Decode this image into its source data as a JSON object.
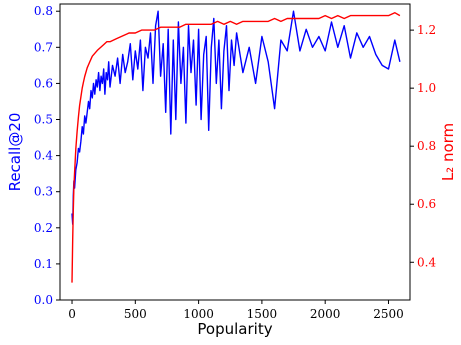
{
  "chart_data": {
    "type": "line",
    "xlabel": "Popularity",
    "ylabel_left": "Recall@20",
    "ylabel_right": "L₂ norm",
    "xlim": [
      -95,
      2670
    ],
    "ylim_left": [
      0.0,
      0.82
    ],
    "ylim_right": [
      0.27,
      1.29
    ],
    "x_ticks": [
      0,
      500,
      1000,
      1500,
      2000,
      2500
    ],
    "y_left_ticks": [
      "0.0",
      "0.1",
      "0.2",
      "0.3",
      "0.4",
      "0.5",
      "0.6",
      "0.7",
      "0.8"
    ],
    "y_right_ticks": [
      "0.4",
      "0.6",
      "0.8",
      "1.0",
      "1.2"
    ],
    "grid": false,
    "colors": {
      "left_axis": "#0000ff",
      "right_axis": "#ff0000",
      "frame": "#000000"
    },
    "series": [
      {
        "axis": "left",
        "color": "#0000ff",
        "x": [
          0,
          5,
          10,
          15,
          20,
          30,
          40,
          50,
          60,
          70,
          80,
          90,
          100,
          110,
          120,
          130,
          140,
          150,
          160,
          170,
          180,
          190,
          200,
          210,
          220,
          230,
          240,
          250,
          260,
          270,
          280,
          290,
          300,
          320,
          340,
          360,
          380,
          400,
          420,
          440,
          460,
          480,
          500,
          520,
          540,
          560,
          580,
          600,
          620,
          640,
          660,
          680,
          700,
          720,
          740,
          760,
          780,
          800,
          820,
          840,
          860,
          880,
          900,
          920,
          940,
          960,
          980,
          1000,
          1020,
          1040,
          1060,
          1080,
          1100,
          1120,
          1140,
          1160,
          1180,
          1200,
          1220,
          1240,
          1260,
          1280,
          1300,
          1350,
          1400,
          1450,
          1500,
          1550,
          1600,
          1650,
          1700,
          1750,
          1800,
          1850,
          1900,
          1950,
          2000,
          2050,
          2100,
          2150,
          2200,
          2250,
          2300,
          2350,
          2400,
          2450,
          2500,
          2550,
          2590
        ],
        "y": [
          0.24,
          0.21,
          0.29,
          0.33,
          0.31,
          0.36,
          0.38,
          0.42,
          0.41,
          0.44,
          0.48,
          0.46,
          0.51,
          0.49,
          0.52,
          0.55,
          0.53,
          0.58,
          0.56,
          0.6,
          0.57,
          0.61,
          0.59,
          0.63,
          0.58,
          0.62,
          0.6,
          0.64,
          0.57,
          0.63,
          0.61,
          0.66,
          0.59,
          0.65,
          0.62,
          0.67,
          0.6,
          0.68,
          0.63,
          0.66,
          0.71,
          0.61,
          0.69,
          0.64,
          0.72,
          0.58,
          0.7,
          0.67,
          0.74,
          0.6,
          0.76,
          0.8,
          0.62,
          0.71,
          0.52,
          0.75,
          0.46,
          0.72,
          0.5,
          0.77,
          0.6,
          0.7,
          0.49,
          0.76,
          0.63,
          0.72,
          0.54,
          0.75,
          0.5,
          0.68,
          0.73,
          0.47,
          0.7,
          0.78,
          0.6,
          0.72,
          0.53,
          0.69,
          0.76,
          0.58,
          0.72,
          0.65,
          0.74,
          0.63,
          0.7,
          0.6,
          0.73,
          0.66,
          0.53,
          0.72,
          0.69,
          0.8,
          0.69,
          0.75,
          0.7,
          0.73,
          0.69,
          0.77,
          0.7,
          0.76,
          0.67,
          0.74,
          0.7,
          0.73,
          0.68,
          0.65,
          0.64,
          0.72,
          0.66
        ]
      },
      {
        "axis": "right",
        "color": "#ff0000",
        "x": [
          0,
          5,
          10,
          15,
          20,
          30,
          40,
          50,
          60,
          70,
          80,
          90,
          100,
          120,
          140,
          160,
          180,
          200,
          225,
          250,
          275,
          300,
          350,
          400,
          450,
          500,
          550,
          600,
          650,
          700,
          750,
          800,
          850,
          900,
          950,
          1000,
          1050,
          1100,
          1150,
          1200,
          1250,
          1300,
          1350,
          1400,
          1450,
          1500,
          1550,
          1600,
          1650,
          1700,
          1750,
          1800,
          1850,
          1900,
          1950,
          2000,
          2050,
          2100,
          2150,
          2200,
          2250,
          2300,
          2350,
          2400,
          2450,
          2500,
          2550,
          2590
        ],
        "y": [
          0.33,
          0.48,
          0.58,
          0.66,
          0.71,
          0.79,
          0.85,
          0.9,
          0.94,
          0.97,
          1.0,
          1.02,
          1.04,
          1.07,
          1.09,
          1.11,
          1.12,
          1.13,
          1.14,
          1.15,
          1.16,
          1.16,
          1.17,
          1.18,
          1.19,
          1.19,
          1.2,
          1.2,
          1.2,
          1.21,
          1.21,
          1.21,
          1.21,
          1.22,
          1.22,
          1.22,
          1.22,
          1.22,
          1.23,
          1.22,
          1.23,
          1.22,
          1.23,
          1.23,
          1.23,
          1.23,
          1.23,
          1.24,
          1.23,
          1.24,
          1.24,
          1.24,
          1.24,
          1.24,
          1.24,
          1.25,
          1.24,
          1.25,
          1.24,
          1.25,
          1.25,
          1.25,
          1.25,
          1.25,
          1.25,
          1.25,
          1.26,
          1.25
        ]
      }
    ]
  }
}
